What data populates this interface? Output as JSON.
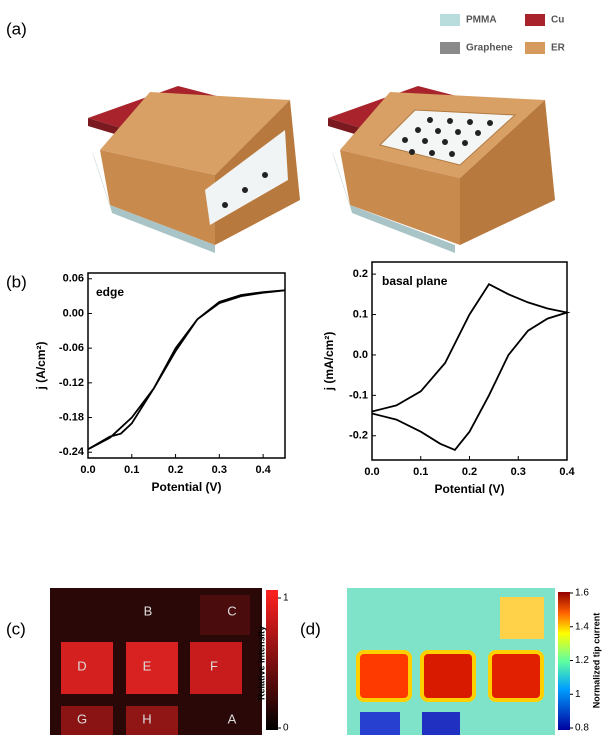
{
  "panels": {
    "a": "(a)",
    "b": "(b)",
    "c": "(c)",
    "d": "(d)"
  },
  "legend": [
    {
      "label": "PMMA",
      "color": "#b9dcdc"
    },
    {
      "label": "Cu",
      "color": "#a8232c"
    },
    {
      "label": "Graphene",
      "color": "#8a8a8a"
    },
    {
      "label": "ER",
      "color": "#d79a5e"
    }
  ],
  "chart_data": [
    {
      "type": "line",
      "annotation": "edge",
      "x_label": "Potential (V)",
      "y_label": "j (A/cm²)",
      "x": [
        0,
        0.05,
        0.1,
        0.15,
        0.2,
        0.25,
        0.3,
        0.35,
        0.4,
        0.45,
        0.4,
        0.35,
        0.3,
        0.25,
        0.2,
        0.15,
        0.1,
        0.075,
        0.05,
        0
      ],
      "values": [
        -0.235,
        -0.215,
        -0.18,
        -0.13,
        -0.065,
        -0.01,
        0.02,
        0.032,
        0.037,
        0.04,
        0.036,
        0.03,
        0.018,
        -0.01,
        -0.06,
        -0.13,
        -0.19,
        -0.208,
        -0.213,
        -0.235
      ],
      "color": "#000000",
      "xlim": [
        0,
        0.45
      ],
      "xticks": [
        {
          "value": 0,
          "label": "0.0"
        },
        0.1,
        0.2,
        0.3,
        0.4
      ],
      "ylim": [
        -0.25,
        0.07
      ],
      "yticks": [
        0.06,
        {
          "value": 0,
          "label": "0.00"
        },
        -0.06,
        -0.12,
        -0.18,
        -0.24
      ]
    },
    {
      "type": "line",
      "annotation": "basal plane",
      "x_label": "Potential (V)",
      "y_label": "j (mA/cm²)",
      "x": [
        0,
        0.05,
        0.1,
        0.15,
        0.2,
        0.24,
        0.28,
        0.32,
        0.36,
        0.4,
        0.36,
        0.32,
        0.28,
        0.24,
        0.2,
        0.17,
        0.14,
        0.1,
        0.05,
        0
      ],
      "values": [
        -0.14,
        -0.125,
        -0.09,
        -0.02,
        0.1,
        0.175,
        0.15,
        0.13,
        0.115,
        0.105,
        0.09,
        0.06,
        0.0,
        -0.1,
        -0.19,
        -0.235,
        -0.22,
        -0.19,
        -0.16,
        -0.145
      ],
      "color": "#000000",
      "xlim": [
        0,
        0.4
      ],
      "xticks": [
        {
          "value": 0,
          "label": "0.0"
        },
        0.1,
        0.2,
        0.3,
        0.4
      ],
      "ylim": [
        -0.26,
        0.23
      ],
      "yticks": [
        0.2,
        0.1,
        {
          "value": 0,
          "label": "0.0"
        },
        -0.1,
        -0.2
      ]
    }
  ],
  "image_c": {
    "labels": [
      "B",
      "C",
      "D",
      "E",
      "F",
      "G",
      "H",
      "A"
    ],
    "clim": [
      0,
      1
    ],
    "colorbar_ticks": [
      1,
      0
    ],
    "colorbar_label": "Relative intensity"
  },
  "image_d": {
    "clim": [
      0.8,
      1.6
    ],
    "colorbar_ticks": [
      1.6,
      1.4,
      1.2,
      1,
      0.8
    ],
    "colorbar_label": "Normalized tip current"
  }
}
